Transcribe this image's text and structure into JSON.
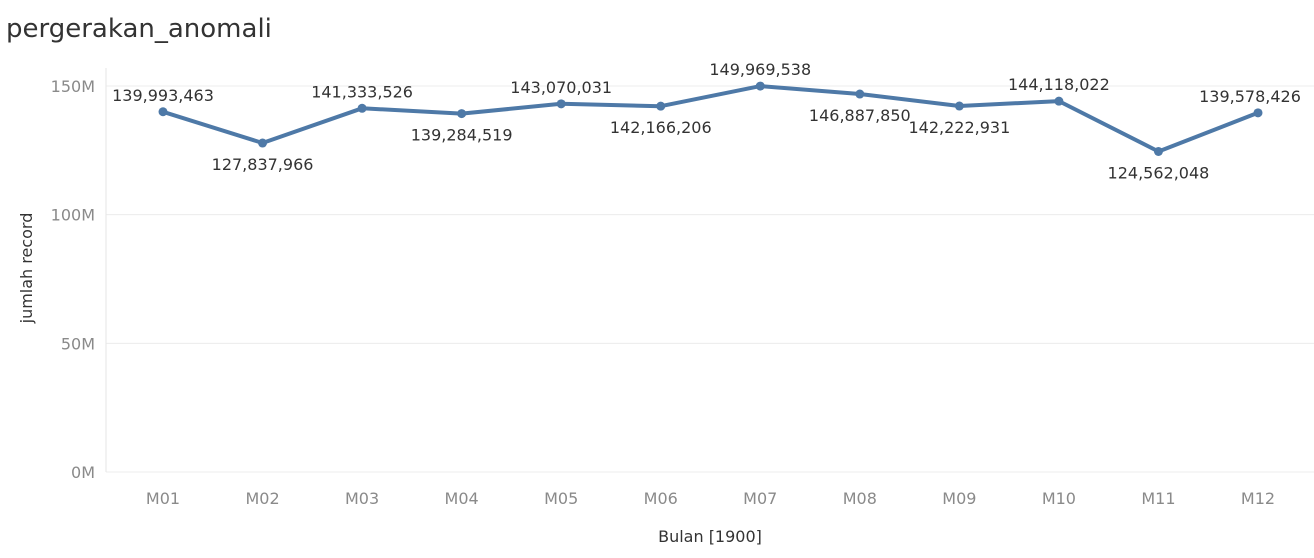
{
  "title": "pergerakan_anomali",
  "chart_data": {
    "type": "line",
    "title": "pergerakan_anomali",
    "xlabel": "Bulan [1900]",
    "ylabel": "jumlah record",
    "categories": [
      "M01",
      "M02",
      "M03",
      "M04",
      "M05",
      "M06",
      "M07",
      "M08",
      "M09",
      "M10",
      "M11",
      "M12"
    ],
    "series": [
      {
        "values": [
          139993463,
          127837966,
          141333526,
          139284519,
          143070031,
          142166206,
          149969538,
          146887850,
          142222931,
          144118022,
          124562048,
          139578426
        ],
        "labels": [
          "139,993,463",
          "127,837,966",
          "141,333,526",
          "139,284,519",
          "143,070,031",
          "142,166,206",
          "149,969,538",
          "146,887,850",
          "142,222,931",
          "144,118,022",
          "124,562,048",
          "139,578,426"
        ],
        "label_positions": [
          "above",
          "below",
          "above",
          "below",
          "above",
          "below",
          "above",
          "below",
          "below",
          "above",
          "below",
          "above"
        ]
      }
    ],
    "ylim": [
      0,
      150000000
    ],
    "yticks": [
      0,
      50000000,
      100000000,
      150000000
    ],
    "ytick_labels": [
      "0M",
      "50M",
      "100M",
      "150M"
    ],
    "grid": true,
    "line_color": "#4e79a7"
  }
}
